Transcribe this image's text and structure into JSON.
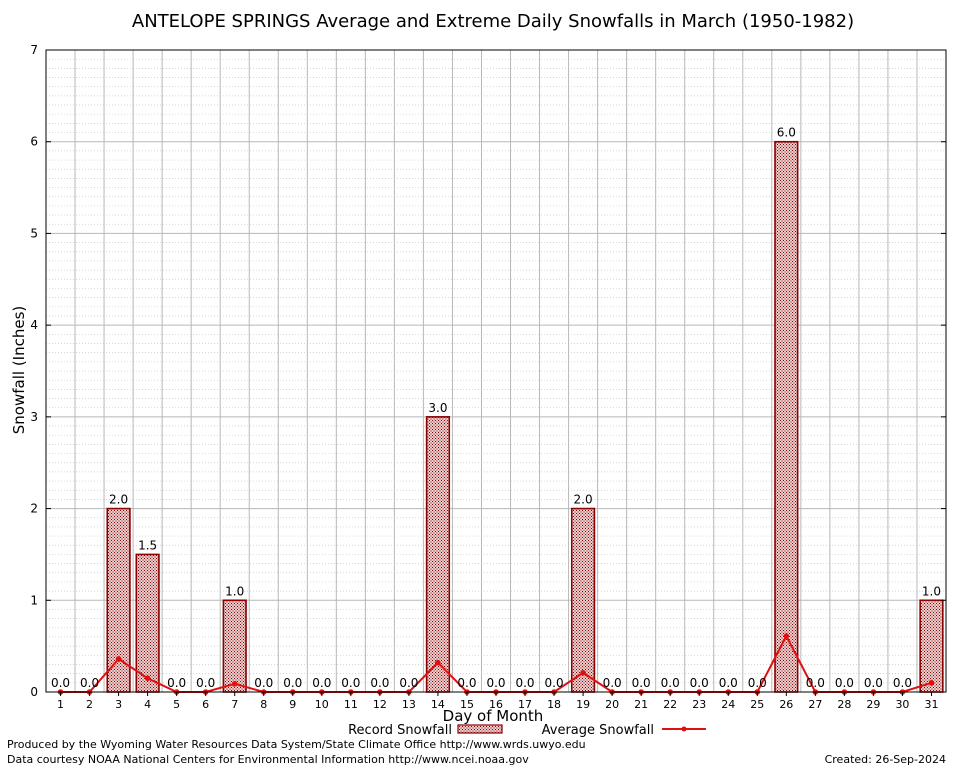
{
  "chart_data": {
    "type": "bar",
    "title": "ANTELOPE SPRINGS Average and Extreme Daily Snowfalls in March (1950-1982)",
    "xlabel": "Day of Month",
    "ylabel": "Snowfall (Inches)",
    "ylim": [
      0,
      7
    ],
    "yticks": [
      "0",
      "1",
      "2",
      "3",
      "4",
      "5",
      "6",
      "7"
    ],
    "categories": [
      "1",
      "2",
      "3",
      "4",
      "5",
      "6",
      "7",
      "8",
      "9",
      "10",
      "11",
      "12",
      "13",
      "14",
      "15",
      "16",
      "17",
      "18",
      "19",
      "20",
      "21",
      "22",
      "23",
      "24",
      "25",
      "26",
      "27",
      "28",
      "29",
      "30",
      "31"
    ],
    "series": [
      {
        "name": "Record Snowfall",
        "kind": "bar",
        "values": [
          0,
          0,
          2.0,
          1.5,
          0,
          0,
          1.0,
          0,
          0,
          0,
          0,
          0,
          0,
          3.0,
          0,
          0,
          0,
          0,
          2.0,
          0,
          0,
          0,
          0,
          0,
          0,
          6.0,
          0,
          0,
          0,
          0,
          1.0
        ],
        "labels": [
          "0.0",
          "0.0",
          "2.0",
          "1.5",
          "0.0",
          "0.0",
          "1.0",
          "0.0",
          "0.0",
          "0.0",
          "0.0",
          "0.0",
          "0.0",
          "3.0",
          "0.0",
          "0.0",
          "0.0",
          "0.0",
          "2.0",
          "0.0",
          "0.0",
          "0.0",
          "0.0",
          "0.0",
          "0.0",
          "6.0",
          "0.0",
          "0.0",
          "0.0",
          "0.0",
          "1.0"
        ]
      },
      {
        "name": "Average Snowfall",
        "kind": "line",
        "values": [
          0,
          0,
          0.36,
          0.15,
          0,
          0,
          0.09,
          0,
          0,
          0,
          0,
          0,
          0,
          0.32,
          0,
          0,
          0,
          0,
          0.21,
          0,
          0,
          0,
          0,
          0,
          0,
          0.61,
          0,
          0,
          0,
          0,
          0.1
        ]
      }
    ],
    "colors": {
      "bar_edge": "#8b0000",
      "bar_fill": "#c9a0a0",
      "line": "#e01010",
      "grid": "#b8b8b8"
    },
    "grid": true,
    "legend": "bottom-center"
  },
  "footer": {
    "produced_by": "Produced by the Wyoming Water Resources Data System/State Climate Office http://www.wrds.uwyo.edu",
    "courtesy": "Data courtesy NOAA National Centers for Environmental Information http://www.ncei.noaa.gov",
    "created": "Created:  26-Sep-2024"
  }
}
